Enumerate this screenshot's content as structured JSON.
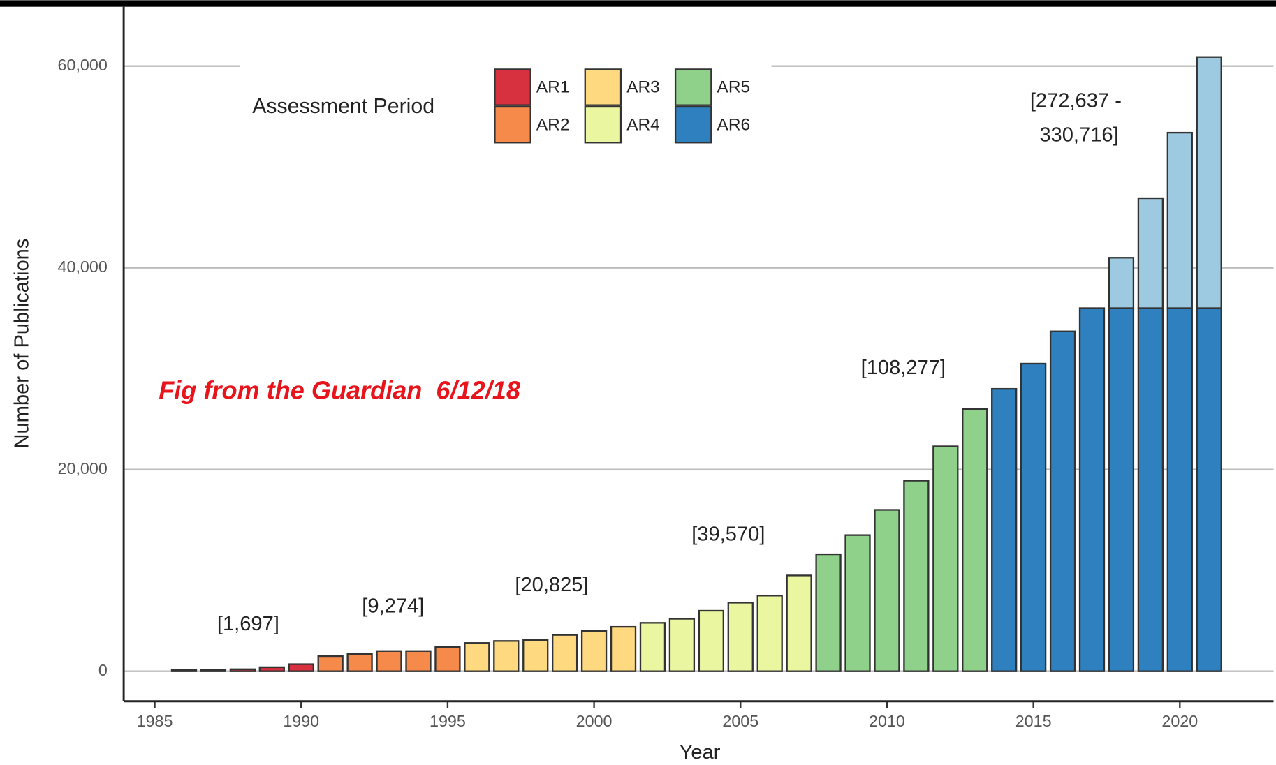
{
  "chart_data": {
    "type": "bar",
    "x_label": "Year",
    "y_label": "Number of Publications",
    "legend_title": "Assessment Period",
    "x": [
      1986,
      1987,
      1988,
      1989,
      1990,
      1991,
      1992,
      1993,
      1994,
      1995,
      1996,
      1997,
      1998,
      1999,
      2000,
      2001,
      2002,
      2003,
      2004,
      2005,
      2006,
      2007,
      2008,
      2009,
      2010,
      2011,
      2012,
      2013,
      2014,
      2015,
      2016,
      2017,
      2018,
      2019,
      2020,
      2021
    ],
    "series": [
      {
        "name": "AR1",
        "color": "#d7303f",
        "values": [
          150,
          150,
          200,
          400,
          700,
          null,
          null,
          null,
          null,
          null,
          null,
          null,
          null,
          null,
          null,
          null,
          null,
          null,
          null,
          null,
          null,
          null,
          null,
          null,
          null,
          null,
          null,
          null,
          null,
          null,
          null,
          null,
          null,
          null,
          null,
          null
        ]
      },
      {
        "name": "AR2",
        "color": "#f58a4b",
        "values": [
          null,
          null,
          null,
          null,
          null,
          1500,
          1700,
          2000,
          2000,
          2400,
          null,
          null,
          null,
          null,
          null,
          null,
          null,
          null,
          null,
          null,
          null,
          null,
          null,
          null,
          null,
          null,
          null,
          null,
          null,
          null,
          null,
          null,
          null,
          null,
          null,
          null
        ]
      },
      {
        "name": "AR3",
        "color": "#fed980",
        "values": [
          null,
          null,
          null,
          null,
          null,
          null,
          null,
          null,
          null,
          null,
          2800,
          3000,
          3100,
          3600,
          4000,
          4400,
          null,
          null,
          null,
          null,
          null,
          null,
          null,
          null,
          null,
          null,
          null,
          null,
          null,
          null,
          null,
          null,
          null,
          null,
          null,
          null
        ]
      },
      {
        "name": "AR4",
        "color": "#eaf6a0",
        "values": [
          null,
          null,
          null,
          null,
          null,
          null,
          null,
          null,
          null,
          null,
          null,
          null,
          null,
          null,
          null,
          null,
          4800,
          5200,
          6000,
          6800,
          7500,
          9500,
          null,
          null,
          null,
          null,
          null,
          null,
          null,
          null,
          null,
          null,
          null,
          null,
          null,
          null
        ]
      },
      {
        "name": "AR5",
        "color": "#8fd18a",
        "values": [
          null,
          null,
          null,
          null,
          null,
          null,
          null,
          null,
          null,
          null,
          null,
          null,
          null,
          null,
          null,
          null,
          null,
          null,
          null,
          null,
          null,
          null,
          11600,
          13500,
          16000,
          18900,
          22300,
          26000,
          null,
          null,
          null,
          null,
          null,
          null,
          null,
          null
        ]
      },
      {
        "name": "AR6",
        "color": "#2f80be",
        "values": [
          null,
          null,
          null,
          null,
          null,
          null,
          null,
          null,
          null,
          null,
          null,
          null,
          null,
          null,
          null,
          null,
          null,
          null,
          null,
          null,
          null,
          null,
          null,
          null,
          null,
          null,
          null,
          null,
          28000,
          30500,
          33700,
          36000,
          36000,
          36000,
          36000,
          36000
        ]
      },
      {
        "color": "#9ecae1",
        "values": [
          null,
          null,
          null,
          null,
          null,
          null,
          null,
          null,
          null,
          null,
          null,
          null,
          null,
          null,
          null,
          null,
          null,
          null,
          null,
          null,
          null,
          null,
          null,
          null,
          null,
          null,
          null,
          null,
          null,
          null,
          null,
          null,
          5000,
          10900,
          17400,
          24900
        ]
      }
    ],
    "annotations": [
      "[1,697]",
      "[9,274]",
      "[20,825]",
      "[39,570]",
      "[108,277]",
      [
        "[272,637 -",
        "330,716]"
      ]
    ],
    "note": "Fig from the Guardian  6/12/18",
    "xlim": [
      1983.94,
      2023.2
    ],
    "xticks": [
      1985,
      1990,
      1995,
      2000,
      2005,
      2010,
      2015,
      2020
    ],
    "ylim": [
      -2980,
      66530
    ],
    "yticks": [
      0,
      {
        "value": 20000,
        "label": "20,000"
      },
      {
        "value": 40000,
        "label": "40,000"
      },
      {
        "value": 60000,
        "label": "60,000"
      }
    ],
    "grid": true
  }
}
